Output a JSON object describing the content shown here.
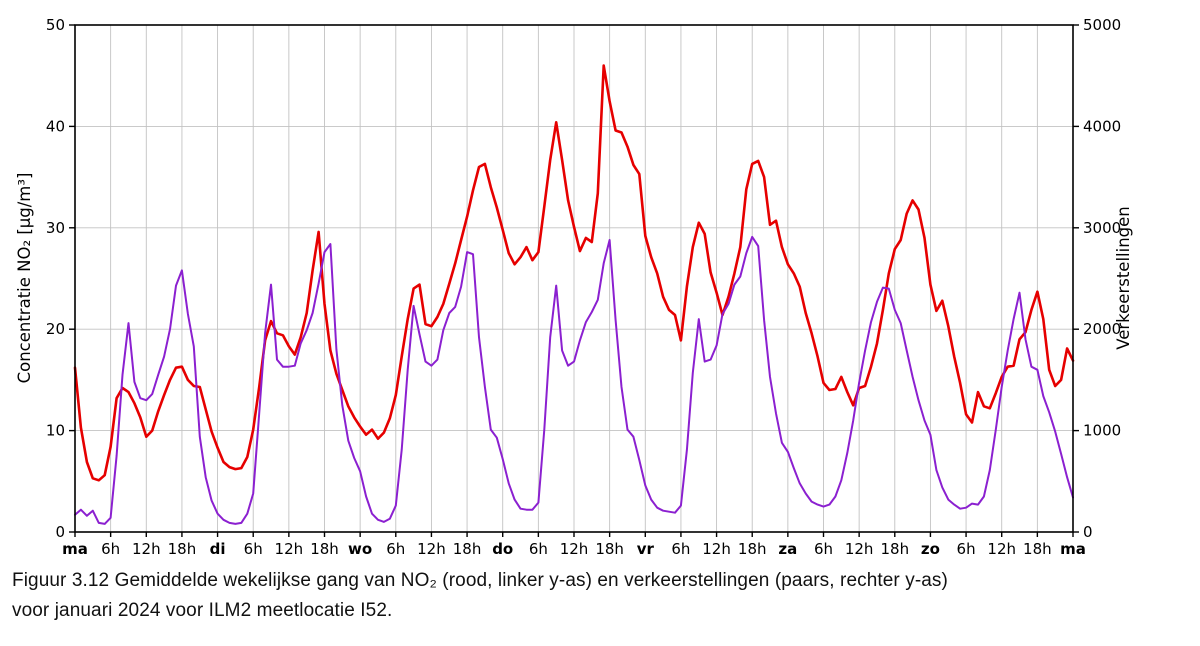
{
  "figure": {
    "caption_line1": "Figuur 3.12 Gemiddelde wekelijkse gang van NO₂ (rood, linker y-as) en verkeerstellingen  (paars, rechter y-as)",
    "caption_line2": "voor januari 2024 voor ILM2 meetlocatie I52."
  },
  "colors": {
    "no2_line": "#e60000",
    "traffic_line": "#8b20d0",
    "grid": "#c2c2c2",
    "axis": "#000000"
  },
  "chart_data": {
    "type": "line",
    "title": "",
    "grid": true,
    "legend_position": "none",
    "x_axis": {
      "unit": "uur van de week",
      "range_hours": [
        0,
        168
      ],
      "tick_every_hours": 6,
      "day_labels": [
        "ma",
        "di",
        "wo",
        "do",
        "vr",
        "za",
        "zo",
        "ma"
      ],
      "hour_labels": [
        "6h",
        "12h",
        "18h"
      ]
    },
    "y_left": {
      "label": "Concentratie NO₂ [µg/m³]",
      "range": [
        0,
        50
      ],
      "ticks": [
        0,
        10,
        20,
        30,
        40,
        50
      ]
    },
    "y_right": {
      "label": "Verkeerstellingen",
      "range": [
        0,
        5000
      ],
      "ticks": [
        0,
        1000,
        2000,
        3000,
        4000,
        5000
      ]
    },
    "series": [
      {
        "name": "NO₂-concentratie (rood, linker y-as)",
        "axis": "left",
        "color": "#e60000",
        "width": 2.6,
        "values": [
          16.2,
          10.3,
          6.9,
          5.3,
          5.1,
          5.6,
          8.4,
          13.2,
          14.2,
          13.8,
          12.7,
          11.3,
          9.4,
          10.0,
          11.9,
          13.5,
          15.0,
          16.2,
          16.3,
          15.0,
          14.4,
          14.3,
          12.1,
          9.9,
          8.3,
          6.9,
          6.4,
          6.2,
          6.3,
          7.4,
          10.1,
          14.3,
          18.9,
          20.8,
          19.6,
          19.4,
          18.3,
          17.5,
          19.2,
          21.6,
          25.8,
          29.6,
          22.5,
          17.9,
          15.6,
          14.0,
          12.4,
          11.3,
          10.4,
          9.6,
          10.1,
          9.2,
          9.8,
          11.2,
          13.5,
          17.3,
          21.0,
          24.0,
          24.4,
          20.5,
          20.3,
          21.2,
          22.5,
          24.5,
          26.5,
          28.8,
          31.1,
          33.7,
          36.0,
          36.3,
          34.0,
          32.0,
          29.8,
          27.5,
          26.4,
          27.1,
          28.1,
          26.8,
          27.6,
          32.1,
          36.7,
          40.4,
          36.7,
          32.7,
          30.1,
          27.7,
          29.0,
          28.6,
          33.4,
          46.0,
          42.5,
          39.6,
          39.4,
          38.0,
          36.2,
          35.3,
          29.2,
          27.1,
          25.5,
          23.2,
          21.9,
          21.4,
          18.9,
          24.2,
          28.1,
          30.5,
          29.4,
          25.6,
          23.6,
          21.4,
          23.2,
          25.5,
          28.1,
          33.8,
          36.3,
          36.6,
          35.0,
          30.3,
          30.7,
          28.1,
          26.4,
          25.5,
          24.2,
          21.6,
          19.6,
          17.3,
          14.7,
          14.0,
          14.1,
          15.3,
          13.8,
          12.5,
          14.2,
          14.4,
          16.3,
          18.6,
          21.9,
          25.5,
          27.9,
          28.8,
          31.4,
          32.7,
          31.8,
          29.0,
          24.4,
          21.8,
          22.8,
          20.3,
          17.3,
          14.7,
          11.6,
          10.8,
          13.8,
          12.4,
          12.2,
          13.7,
          15.3,
          16.3,
          16.4,
          19.0,
          19.7,
          21.9,
          23.7,
          21.0,
          16.0,
          14.4,
          15.0,
          18.1,
          16.9
        ]
      },
      {
        "name": "Verkeerstellingen (paars, rechter y-as)",
        "axis": "right",
        "color": "#8b20d0",
        "width": 2.0,
        "values": [
          170,
          220,
          160,
          210,
          90,
          80,
          140,
          750,
          1550,
          2060,
          1480,
          1320,
          1300,
          1360,
          1550,
          1730,
          2000,
          2430,
          2580,
          2150,
          1830,
          940,
          540,
          310,
          180,
          120,
          90,
          80,
          90,
          180,
          380,
          1170,
          1960,
          2440,
          1700,
          1630,
          1630,
          1640,
          1860,
          1990,
          2160,
          2450,
          2760,
          2840,
          1800,
          1250,
          900,
          730,
          600,
          350,
          180,
          120,
          100,
          130,
          260,
          810,
          1600,
          2230,
          1950,
          1680,
          1640,
          1700,
          1990,
          2160,
          2220,
          2420,
          2760,
          2740,
          1920,
          1430,
          1010,
          930,
          720,
          480,
          320,
          230,
          220,
          220,
          290,
          1010,
          1920,
          2430,
          1790,
          1640,
          1680,
          1890,
          2070,
          2170,
          2290,
          2650,
          2880,
          2090,
          1430,
          1010,
          940,
          710,
          460,
          320,
          240,
          210,
          200,
          190,
          260,
          810,
          1570,
          2100,
          1680,
          1700,
          1840,
          2150,
          2250,
          2440,
          2520,
          2750,
          2910,
          2820,
          2090,
          1530,
          1170,
          880,
          790,
          630,
          480,
          380,
          300,
          270,
          250,
          270,
          350,
          510,
          780,
          1100,
          1470,
          1790,
          2070,
          2270,
          2410,
          2400,
          2190,
          2060,
          1790,
          1530,
          1300,
          1100,
          960,
          610,
          440,
          320,
          270,
          230,
          240,
          280,
          270,
          350,
          610,
          1010,
          1430,
          1790,
          2100,
          2360,
          1900,
          1630,
          1600,
          1340,
          1180,
          990,
          770,
          540,
          340
        ]
      }
    ]
  }
}
